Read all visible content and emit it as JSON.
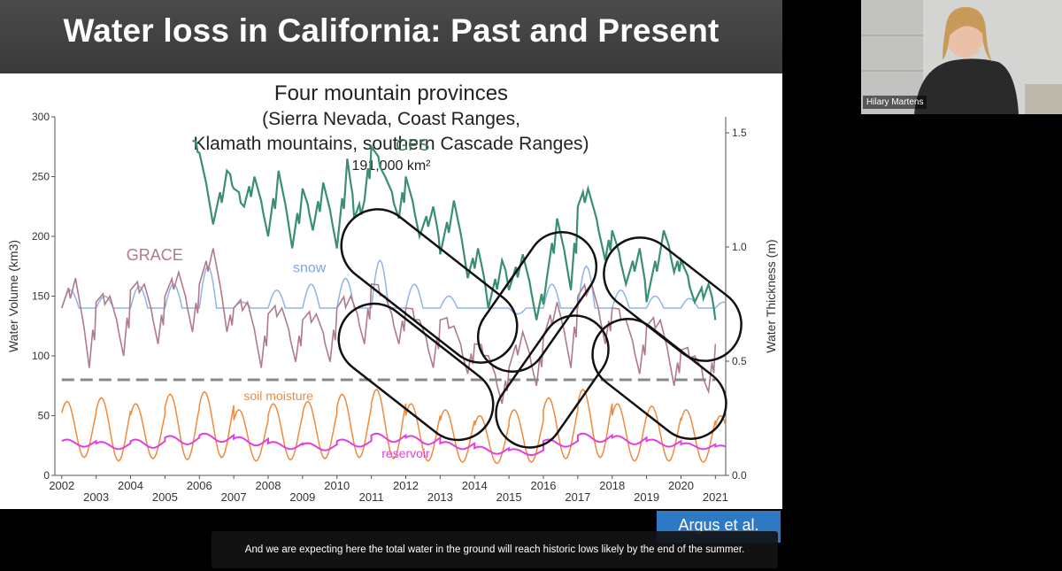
{
  "slide": {
    "title": "Water loss in California: Past and Present",
    "citation": "Argus et al."
  },
  "caption": "And we are expecting here the total water in the ground will reach historic lows likely by the end of the summer.",
  "participant": {
    "name": "Hilary Martens"
  },
  "chart_data": {
    "type": "line",
    "title": "Four mountain provinces",
    "subtitle_line1": "(Sierra Nevada, Coast Ranges,",
    "subtitle_line2": "Klamath mountains, southern Cascade Ranges)",
    "area": "191,000 km²",
    "ylabel": "Water Volume (km3)",
    "y2label": "Water Thickness (m)",
    "ylim": [
      0,
      300
    ],
    "y2lim": [
      0,
      1.57
    ],
    "xlim": [
      2001.8,
      2021.3
    ],
    "yticks": [
      0,
      50,
      100,
      150,
      200,
      250,
      300
    ],
    "y2ticks": [
      0,
      0.5,
      1.0,
      1.5
    ],
    "y2tick_labels": [
      "0.0",
      "0.5",
      "1.0",
      "1.5"
    ],
    "xticks_upper": [
      2002,
      2004,
      2006,
      2008,
      2010,
      2012,
      2014,
      2016,
      2018,
      2020
    ],
    "xticks_lower": [
      2003,
      2005,
      2007,
      2009,
      2011,
      2013,
      2015,
      2017,
      2019,
      2021
    ],
    "dashed_level": 80,
    "series": [
      {
        "name": "GPS",
        "color": "#3a8f6e",
        "x": [
          2005.8,
          2006.0,
          2006.4,
          2006.8,
          2007.0,
          2007.3,
          2007.6,
          2008.0,
          2008.3,
          2008.7,
          2009.0,
          2009.3,
          2009.6,
          2010.0,
          2010.3,
          2010.5,
          2010.8,
          2011.0,
          2011.4,
          2011.8,
          2012.0,
          2012.4,
          2012.8,
          2013.0,
          2013.4,
          2013.8,
          2014.1,
          2014.4,
          2014.8,
          2015.0,
          2015.4,
          2015.8,
          2016.1,
          2016.4,
          2016.8,
          2017.0,
          2017.3,
          2017.8,
          2018.0,
          2018.4,
          2018.8,
          2019.0,
          2019.5,
          2019.8,
          2020.0,
          2020.4,
          2020.8,
          2021.0
        ],
        "values": [
          280,
          270,
          210,
          255,
          240,
          225,
          250,
          200,
          255,
          190,
          240,
          205,
          245,
          190,
          265,
          215,
          230,
          275,
          250,
          215,
          250,
          200,
          225,
          185,
          230,
          165,
          190,
          140,
          180,
          155,
          185,
          130,
          165,
          215,
          155,
          225,
          240,
          180,
          205,
          160,
          190,
          145,
          205,
          170,
          180,
          145,
          160,
          130
        ]
      },
      {
        "name": "GRACE",
        "color": "#b07a8a",
        "x": [
          2002.0,
          2002.4,
          2002.8,
          2003.0,
          2003.4,
          2003.8,
          2004.0,
          2004.4,
          2004.8,
          2005.0,
          2005.4,
          2005.8,
          2006.0,
          2006.4,
          2006.8,
          2007.0,
          2007.4,
          2007.8,
          2008.0,
          2008.4,
          2008.8,
          2009.0,
          2009.4,
          2009.8,
          2010.0,
          2010.4,
          2010.8,
          2011.0,
          2011.4,
          2011.8,
          2012.0,
          2012.4,
          2012.8,
          2013.0,
          2013.4,
          2013.8,
          2014.0,
          2014.4,
          2014.8,
          2015.0,
          2015.4,
          2015.8,
          2016.0,
          2016.4,
          2016.8,
          2017.0,
          2017.4,
          2017.8,
          2018.0,
          2018.4,
          2018.8,
          2019.0,
          2019.4,
          2019.8,
          2020.0,
          2020.4,
          2020.8,
          2021.0
        ],
        "values": [
          140,
          165,
          90,
          145,
          150,
          100,
          155,
          160,
          110,
          150,
          170,
          120,
          160,
          190,
          120,
          140,
          145,
          90,
          135,
          140,
          95,
          130,
          135,
          95,
          140,
          150,
          110,
          160,
          150,
          110,
          140,
          130,
          90,
          130,
          125,
          85,
          110,
          100,
          60,
          90,
          120,
          75,
          115,
          145,
          90,
          150,
          160,
          110,
          140,
          130,
          85,
          125,
          130,
          75,
          105,
          100,
          70,
          110
        ]
      },
      {
        "name": "snow",
        "color": "#8fb4ea",
        "x": [
          2002,
          2003,
          2004,
          2005,
          2006,
          2007,
          2008,
          2009,
          2010,
          2011,
          2012,
          2013,
          2014,
          2015,
          2016,
          2017,
          2018,
          2019,
          2020,
          2021
        ],
        "peaks": [
          155,
          150,
          158,
          160,
          175,
          145,
          155,
          160,
          165,
          180,
          160,
          150,
          140,
          135,
          160,
          175,
          155,
          150,
          148,
          145
        ],
        "baseline": 140
      },
      {
        "name": "soil moisture",
        "color": "#f08a3a",
        "x": [
          2002,
          2003,
          2004,
          2005,
          2006,
          2007,
          2008,
          2009,
          2010,
          2011,
          2012,
          2013,
          2014,
          2015,
          2016,
          2017,
          2018,
          2019,
          2020,
          2021
        ],
        "peaks": [
          62,
          65,
          60,
          68,
          70,
          55,
          60,
          62,
          68,
          72,
          60,
          55,
          50,
          55,
          65,
          72,
          60,
          58,
          55,
          50
        ],
        "troughs": [
          15,
          12,
          14,
          13,
          15,
          12,
          13,
          14,
          15,
          14,
          12,
          11,
          10,
          11,
          14,
          15,
          12,
          12,
          11,
          10
        ]
      },
      {
        "name": "reservoir",
        "color": "#e040e0",
        "x": [
          2002,
          2003,
          2004,
          2005,
          2006,
          2007,
          2008,
          2009,
          2010,
          2011,
          2012,
          2013,
          2014,
          2015,
          2016,
          2017,
          2018,
          2019,
          2020,
          2021
        ],
        "peaks": [
          30,
          28,
          30,
          33,
          35,
          32,
          28,
          27,
          30,
          35,
          33,
          28,
          24,
          22,
          30,
          35,
          33,
          30,
          27,
          25
        ],
        "troughs": [
          24,
          22,
          23,
          26,
          28,
          25,
          22,
          21,
          24,
          28,
          26,
          22,
          18,
          17,
          24,
          28,
          26,
          24,
          22,
          21
        ]
      }
    ]
  }
}
